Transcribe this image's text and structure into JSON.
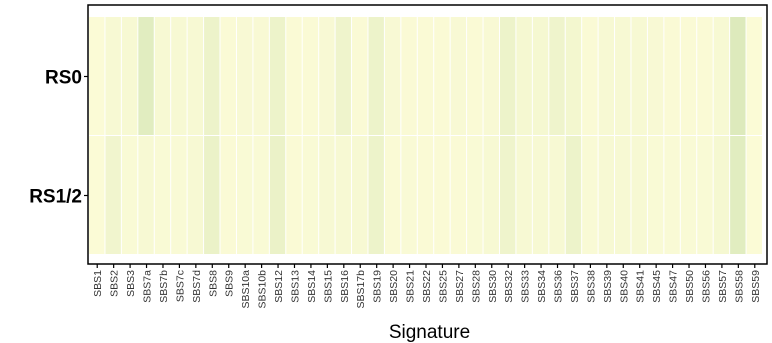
{
  "chart_data": {
    "type": "heatmap",
    "xlabel": "Signature",
    "ylabel": "",
    "title": "",
    "legend": "none",
    "grid": false,
    "rows": [
      "RS0",
      "RS1/2"
    ],
    "columns": [
      "SBS1",
      "SBS2",
      "SBS3",
      "SBS7a",
      "SBS7b",
      "SBS7c",
      "SBS7d",
      "SBS8",
      "SBS9",
      "SBS10a",
      "SBS10b",
      "SBS12",
      "SBS13",
      "SBS14",
      "SBS15",
      "SBS16",
      "SBS17b",
      "SBS19",
      "SBS20",
      "SBS21",
      "SBS22",
      "SBS25",
      "SBS27",
      "SBS28",
      "SBS30",
      "SBS32",
      "SBS33",
      "SBS34",
      "SBS36",
      "SBS37",
      "SBS38",
      "SBS39",
      "SBS40",
      "SBS41",
      "SBS45",
      "SBS47",
      "SBS50",
      "SBS56",
      "SBS57",
      "SBS58",
      "SBS59"
    ],
    "values": [
      [
        0.05,
        0.15,
        0.15,
        0.7,
        0.15,
        0.15,
        0.15,
        0.4,
        0.08,
        0.12,
        0.12,
        0.4,
        0.08,
        0.08,
        0.12,
        0.35,
        0.08,
        0.4,
        0.12,
        0.08,
        0.08,
        0.08,
        0.12,
        0.08,
        0.12,
        0.4,
        0.2,
        0.2,
        0.35,
        0.25,
        0.08,
        0.15,
        0.15,
        0.15,
        0.12,
        0.08,
        0.08,
        0.08,
        0.15,
        0.8,
        0.05
      ],
      [
        0.05,
        0.3,
        0.1,
        0.15,
        0.1,
        0.1,
        0.15,
        0.45,
        0.08,
        0.1,
        0.1,
        0.45,
        0.08,
        0.1,
        0.15,
        0.15,
        0.15,
        0.4,
        0.08,
        0.1,
        0.08,
        0.08,
        0.08,
        0.1,
        0.15,
        0.35,
        0.15,
        0.15,
        0.15,
        0.4,
        0.1,
        0.15,
        0.15,
        0.15,
        0.1,
        0.1,
        0.1,
        0.1,
        0.2,
        0.7,
        0.05
      ]
    ],
    "color_scale": {
      "low": "#fdfcd8",
      "high": "#d5e6b5"
    },
    "axis_color": "#000000"
  }
}
